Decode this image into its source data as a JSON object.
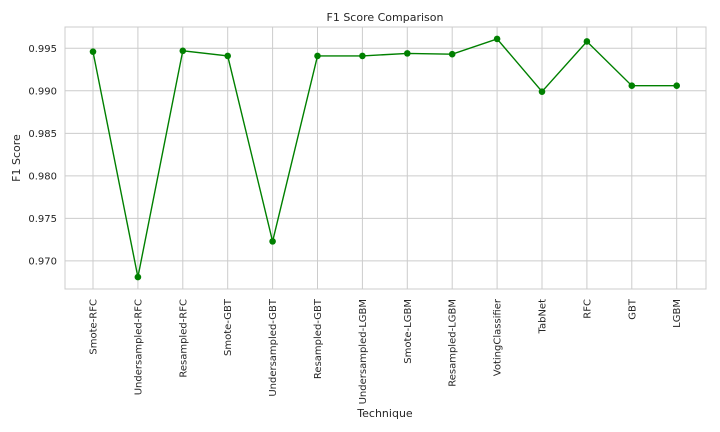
{
  "chart_data": {
    "type": "line",
    "title": "F1 Score Comparison",
    "xlabel": "Technique",
    "ylabel": "F1 Score",
    "categories": [
      "Smote-RFC",
      "Undersampled-RFC",
      "Resampled-RFC",
      "Smote-GBT",
      "Undersampled-GBT",
      "Resampled-GBT",
      "Undersampled-LGBM",
      "Smote-LGBM",
      "Resampled-LGBM",
      "VotingClassifier",
      "TabNet",
      "RFC",
      "GBT",
      "LGBM"
    ],
    "values": [
      0.9946,
      0.9681,
      0.9947,
      0.9941,
      0.9723,
      0.9941,
      0.9941,
      0.9944,
      0.9943,
      0.9961,
      0.9899,
      0.9958,
      0.9906,
      0.9906
    ],
    "ylim": [
      0.9667,
      0.9975
    ],
    "yticks": [
      "0.970",
      "0.975",
      "0.980",
      "0.985",
      "0.990",
      "0.995"
    ],
    "ytick_values": [
      0.97,
      0.975,
      0.98,
      0.985,
      0.99,
      0.995
    ],
    "grid": true,
    "line_color": "#008000",
    "marker": "circle",
    "grid_color": "#cccccc"
  }
}
